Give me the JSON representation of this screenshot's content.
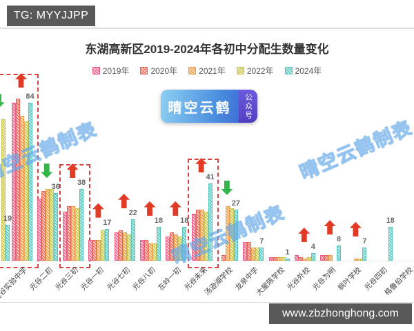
{
  "header": {
    "tg_label": "TG: MYYJJPP"
  },
  "footer": {
    "url": "www.zbzhonghong.com"
  },
  "watermark": {
    "badge_text": "晴空云鹤",
    "badge_side_text": "公众号",
    "diagonal_text": "晴空云鹤制表"
  },
  "chart_data": {
    "type": "bar",
    "title": "东湖高新区2019-2024年各初中分配生数量变化",
    "legend_position": "top",
    "grid": false,
    "ylim": [
      0,
      95
    ],
    "annotation_colors": {
      "increase_arrow": "#e23b25",
      "decrease_arrow": "#35b44a",
      "highlight_box": "#d94040"
    },
    "series_styles": [
      {
        "name": "2019年",
        "main": "#ec5f87",
        "light": "#fbd3de"
      },
      {
        "name": "2020年",
        "main": "#ec6557",
        "light": "#fbd6d0"
      },
      {
        "name": "2021年",
        "main": "#f09c46",
        "light": "#fce4c6"
      },
      {
        "name": "2022年",
        "main": "#c9c64e",
        "light": "#f1efc7"
      },
      {
        "name": "2024年",
        "main": "#56c7bf",
        "light": "#cdeeeb"
      }
    ],
    "groups": [
      {
        "label": "",
        "cut_off": true,
        "values": [
          null,
          null,
          null,
          75,
          19
        ],
        "value_label": "19",
        "arrow": "down"
      },
      {
        "label": "光谷实验中学",
        "values": [
          84,
          86,
          77,
          74,
          84
        ],
        "value_label": "84",
        "arrow": "up"
      },
      {
        "label": "光谷二初",
        "values": [
          33,
          37,
          38,
          38,
          36
        ],
        "value_label": "36",
        "arrow": "down"
      },
      {
        "label": "光谷三初",
        "values": [
          26,
          29,
          29,
          28,
          38
        ],
        "value_label": "38",
        "arrow": "up"
      },
      {
        "label": "光谷一初",
        "values": [
          11,
          11,
          11,
          16,
          17
        ],
        "value_label": "17",
        "arrow": "up"
      },
      {
        "label": "光谷七初",
        "values": [
          15,
          16,
          15,
          14,
          22
        ],
        "value_label": "22",
        "arrow": "up"
      },
      {
        "label": "光谷八初",
        "values": [
          11,
          11,
          9,
          9,
          18
        ],
        "value_label": "18",
        "arrow": "up"
      },
      {
        "label": "左岭一初",
        "values": [
          13,
          15,
          14,
          13,
          18
        ],
        "value_label": "18",
        "arrow": "up"
      },
      {
        "label": "光谷未来",
        "values": [
          25,
          27,
          27,
          26,
          41
        ],
        "value_label": "41",
        "arrow": "up"
      },
      {
        "label": "汤逊湖学校",
        "values": [
          null,
          3,
          29,
          28,
          27
        ],
        "value_label": "27",
        "arrow": "down"
      },
      {
        "label": "龙泉中学",
        "values": [
          10,
          10,
          7,
          7,
          7
        ],
        "value_label": "7",
        "arrow": null
      },
      {
        "label": "大屋陈学校",
        "values": [
          2,
          2,
          2,
          2,
          1
        ],
        "value_label": "1",
        "arrow": null
      },
      {
        "label": "光谷外校",
        "values": [
          3,
          2,
          1,
          2,
          4
        ],
        "value_label": "4",
        "arrow": "up"
      },
      {
        "label": "光谷为明",
        "values": [
          3,
          3,
          3,
          null,
          8
        ],
        "value_label": "8",
        "arrow": "up"
      },
      {
        "label": "枫叶学校",
        "values": [
          null,
          null,
          1,
          1,
          7
        ],
        "value_label": "7",
        "arrow": "up"
      },
      {
        "label": "光谷四初",
        "values": [
          null,
          null,
          null,
          null,
          18
        ],
        "value_label": "18",
        "arrow": null
      },
      {
        "label": "格鲁伯学校",
        "values": [
          null,
          null,
          null,
          null,
          null
        ],
        "value_label": null,
        "arrow": null
      }
    ],
    "boxes": [
      {
        "from": 0,
        "to": 1
      },
      {
        "from": 3,
        "to": 3
      },
      {
        "from": 8,
        "to": 8
      }
    ]
  }
}
